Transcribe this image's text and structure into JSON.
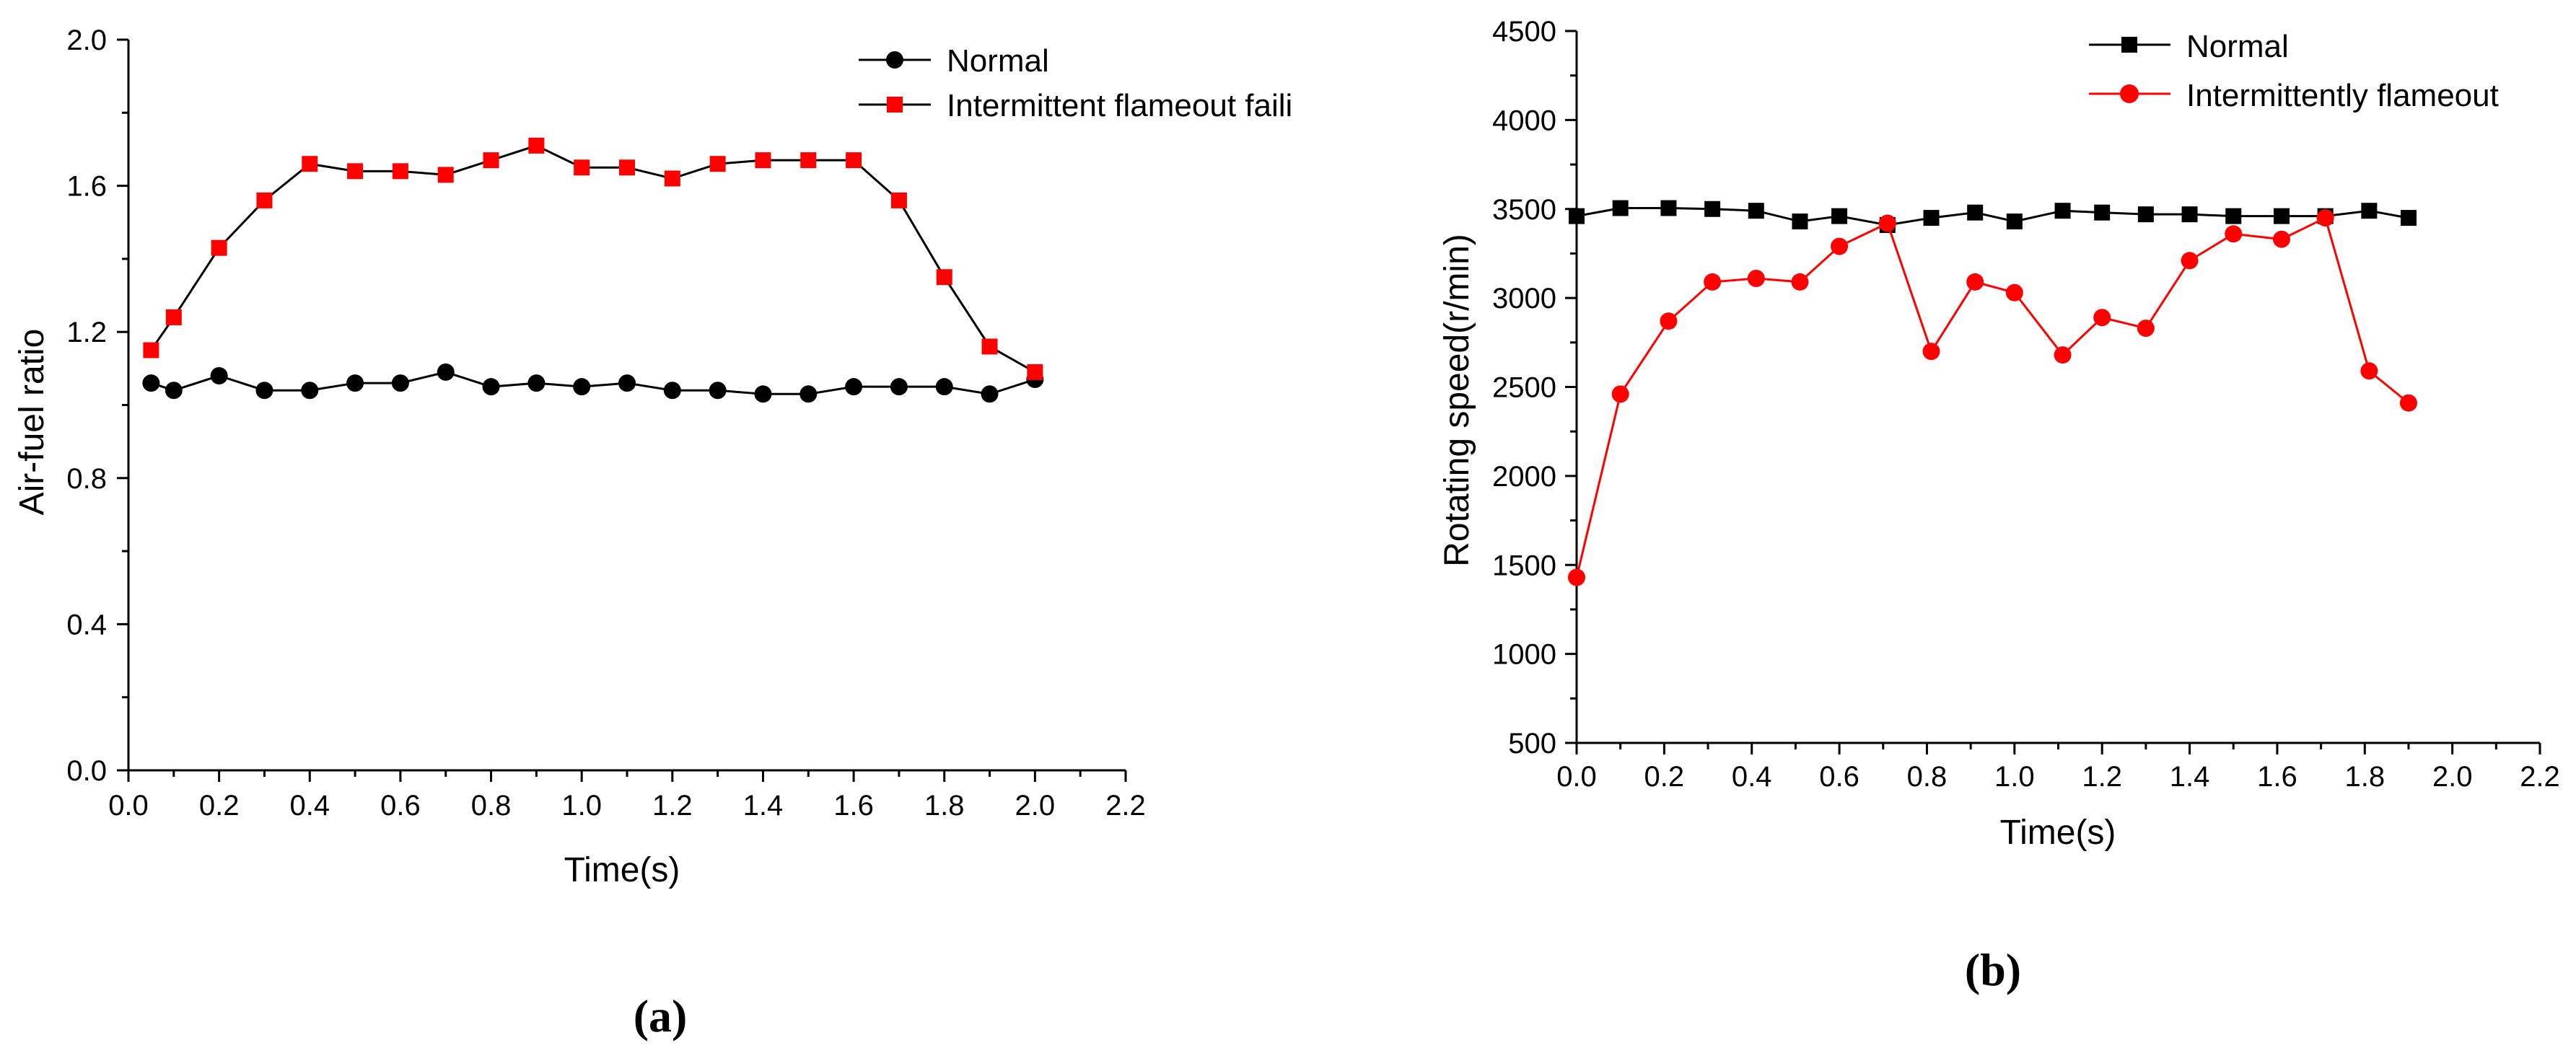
{
  "chart_data": [
    {
      "type": "line",
      "panel": "a",
      "xlabel": "Time(s)",
      "ylabel": "Air-fuel ratio",
      "xlim": [
        0.0,
        2.2
      ],
      "ylim": [
        0.0,
        2.0
      ],
      "xticks": [
        "0.0",
        "0.2",
        "0.4",
        "0.6",
        "0.8",
        "1.0",
        "1.2",
        "1.4",
        "1.6",
        "1.8",
        "2.0",
        "2.2"
      ],
      "yticks": [
        "0.0",
        "0.4",
        "0.8",
        "1.2",
        "1.6",
        "2.0"
      ],
      "legend_position": "top-right",
      "series": [
        {
          "name": "Normal",
          "color": "#000000",
          "marker": "circle",
          "x": [
            0.05,
            0.1,
            0.2,
            0.3,
            0.4,
            0.5,
            0.6,
            0.7,
            0.8,
            0.9,
            1.0,
            1.1,
            1.2,
            1.3,
            1.4,
            1.5,
            1.6,
            1.7,
            1.8,
            1.9,
            2.0
          ],
          "y": [
            1.06,
            1.04,
            1.08,
            1.04,
            1.04,
            1.06,
            1.06,
            1.09,
            1.05,
            1.06,
            1.05,
            1.06,
            1.04,
            1.04,
            1.03,
            1.03,
            1.05,
            1.05,
            1.05,
            1.03,
            1.07
          ]
        },
        {
          "name": "Intermittent flameout faili",
          "color": "#ff0000",
          "marker": "square",
          "x": [
            0.05,
            0.1,
            0.2,
            0.3,
            0.4,
            0.5,
            0.6,
            0.7,
            0.8,
            0.9,
            1.0,
            1.1,
            1.2,
            1.3,
            1.4,
            1.5,
            1.6,
            1.7,
            1.8,
            1.9,
            2.0
          ],
          "y": [
            1.15,
            1.24,
            1.43,
            1.56,
            1.66,
            1.64,
            1.64,
            1.63,
            1.67,
            1.71,
            1.65,
            1.65,
            1.62,
            1.66,
            1.67,
            1.67,
            1.67,
            1.56,
            1.35,
            1.16,
            1.09
          ]
        }
      ],
      "caption": "(a)"
    },
    {
      "type": "line",
      "panel": "b",
      "xlabel": "Time(s)",
      "ylabel": "Rotating speed(r/min)",
      "xlim": [
        0.0,
        2.2
      ],
      "ylim": [
        500,
        4500
      ],
      "xticks": [
        "0.0",
        "0.2",
        "0.4",
        "0.6",
        "0.8",
        "1.0",
        "1.2",
        "1.4",
        "1.6",
        "1.8",
        "2.0",
        "2.2"
      ],
      "yticks": [
        "500",
        "1000",
        "1500",
        "2000",
        "2500",
        "3000",
        "3500",
        "4000",
        "4500"
      ],
      "legend_position": "top-right",
      "series": [
        {
          "name": "Normal",
          "color": "#000000",
          "marker": "square",
          "x": [
            0.0,
            0.1,
            0.21,
            0.31,
            0.41,
            0.51,
            0.6,
            0.71,
            0.81,
            0.91,
            1.0,
            1.11,
            1.2,
            1.3,
            1.4,
            1.5,
            1.61,
            1.71,
            1.81,
            1.9
          ],
          "y": [
            3460,
            3505,
            3505,
            3500,
            3490,
            3430,
            3460,
            3410,
            3450,
            3480,
            3430,
            3490,
            3480,
            3470,
            3470,
            3460,
            3460,
            3460,
            3490,
            3450
          ]
        },
        {
          "name": "Intermittently flameout",
          "color": "#ff0000",
          "marker": "circle",
          "x": [
            0.0,
            0.1,
            0.21,
            0.31,
            0.41,
            0.51,
            0.6,
            0.71,
            0.81,
            0.91,
            1.0,
            1.11,
            1.2,
            1.3,
            1.4,
            1.5,
            1.61,
            1.71,
            1.81,
            1.9
          ],
          "y": [
            1430,
            2460,
            2870,
            3090,
            3110,
            3090,
            3290,
            3420,
            2700,
            3090,
            3030,
            2680,
            2890,
            2830,
            3210,
            3360,
            3330,
            3450,
            2590,
            2410
          ]
        }
      ],
      "caption": "(b)"
    }
  ]
}
